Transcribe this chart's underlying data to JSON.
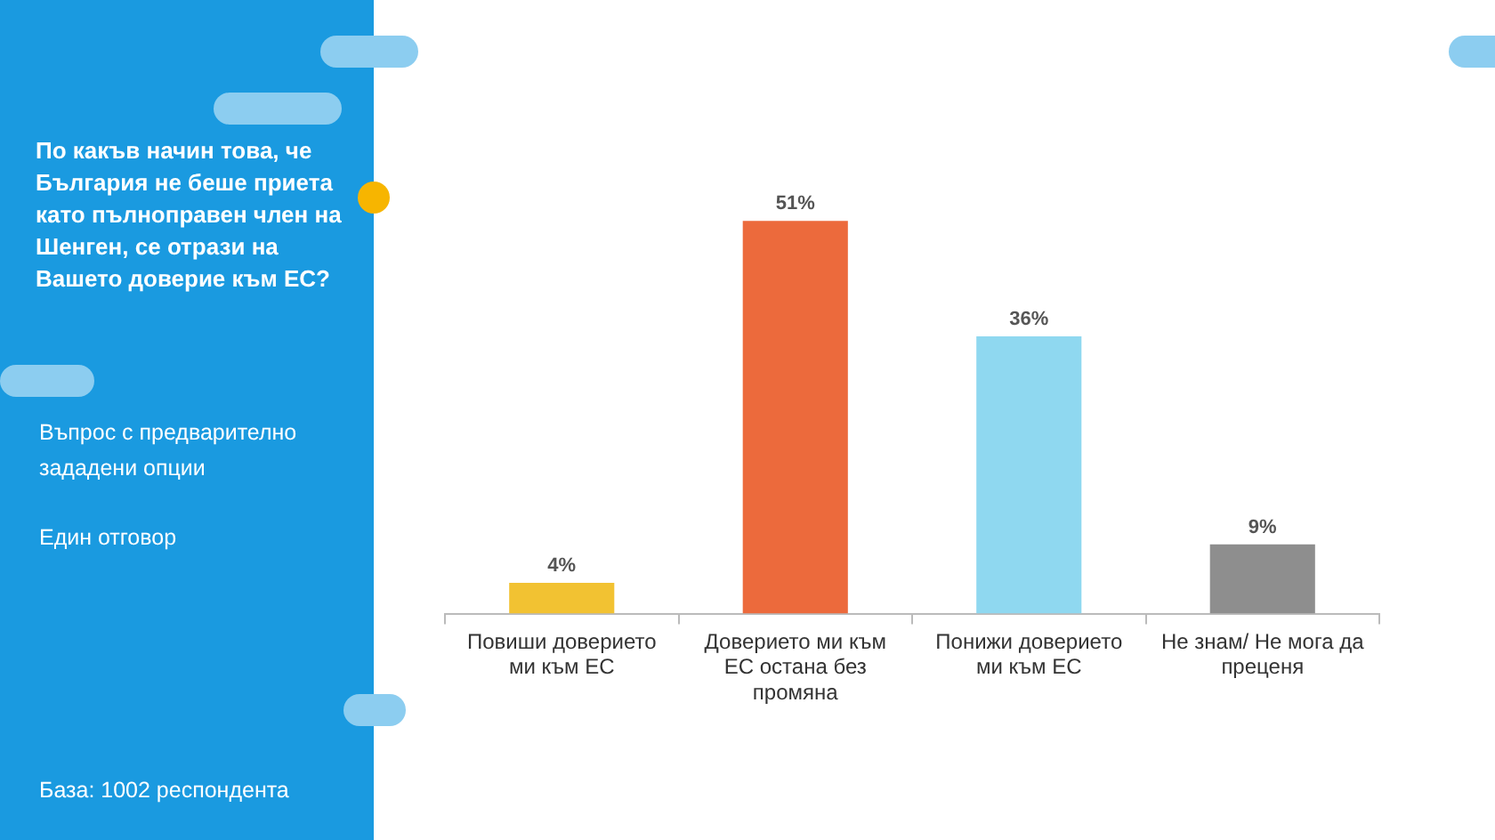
{
  "chart_data": {
    "type": "bar",
    "title": "По какъв начин това, че България не беше приета като пълноправен член на Шенген, се отрази на Вашето доверие към ЕС?",
    "annotations": [
      "Въпрос с предварително зададени опции",
      "Един отговор",
      "База: 1002 респондента"
    ],
    "categories": [
      "Повиши доверието ми към ЕС",
      "Доверието ми към ЕС остана без промяна",
      "Понижи доверието ми към ЕС",
      "Не знам/ Не мога да преценя"
    ],
    "values": [
      4,
      51,
      36,
      9
    ],
    "colors": [
      "#f2c232",
      "#ec6a3c",
      "#8fd8f0",
      "#8e8e8e"
    ],
    "value_labels": [
      "4%",
      "51%",
      "36%",
      "9%"
    ],
    "grid": false,
    "legend": false
  }
}
